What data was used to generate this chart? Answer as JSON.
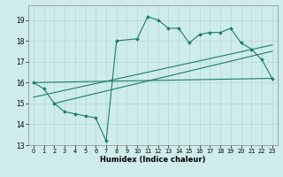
{
  "xlabel": "Humidex (Indice chaleur)",
  "xlim": [
    -0.5,
    23.5
  ],
  "ylim": [
    13,
    19.7
  ],
  "yticks": [
    13,
    14,
    15,
    16,
    17,
    18,
    19
  ],
  "xticks": [
    0,
    1,
    2,
    3,
    4,
    5,
    6,
    7,
    8,
    9,
    10,
    11,
    12,
    13,
    14,
    15,
    16,
    17,
    18,
    19,
    20,
    21,
    22,
    23
  ],
  "background_color": "#ceecea",
  "grid_color": "#b8dbd8",
  "line_color": "#1e7b6e",
  "main_line_x": [
    0,
    1,
    2,
    3,
    4,
    5,
    6,
    7,
    8,
    10,
    11,
    12,
    13,
    14,
    15,
    16,
    17,
    18,
    19,
    20,
    21,
    22,
    23
  ],
  "main_line_y": [
    16.0,
    15.7,
    15.0,
    14.6,
    14.5,
    14.4,
    14.3,
    13.2,
    18.0,
    18.1,
    19.15,
    19.0,
    18.6,
    18.6,
    17.9,
    18.3,
    18.4,
    18.4,
    18.6,
    17.9,
    17.6,
    17.1,
    16.2
  ],
  "trend1_x": [
    0,
    23
  ],
  "trend1_y": [
    16.0,
    16.2
  ],
  "trend2_x": [
    0,
    23
  ],
  "trend2_y": [
    15.3,
    17.8
  ],
  "trend3_x": [
    2,
    23
  ],
  "trend3_y": [
    15.0,
    17.5
  ]
}
